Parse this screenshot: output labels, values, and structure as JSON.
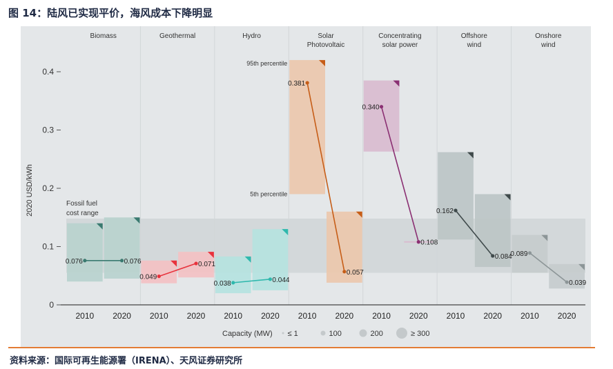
{
  "figure_title": "图 14：陆风已实现平价，海风成本下降明显",
  "source_text": "资料来源：国际可再生能源署（IRENA）、天风证券研究所",
  "chart_data": {
    "type": "range-slope",
    "ylabel": "2020 USD/kWh",
    "ylim": [
      0,
      0.42
    ],
    "yticks": [
      0,
      0.1,
      0.2,
      0.3,
      0.4
    ],
    "ytick_labels": [
      "0",
      "0.1",
      "0.2",
      "0.3",
      "0.4"
    ],
    "year_labels": [
      "2010",
      "2020"
    ],
    "fossil_range": [
      0.055,
      0.148
    ],
    "fossil_label_line1": "Fossil fuel",
    "fossil_label_line2": "cost range",
    "p95_label": "95th percentile",
    "p5_label": "5th percentile",
    "series": [
      {
        "name": "Biomass",
        "title1": "Biomass",
        "title2": "",
        "color": "#3a7a70",
        "v2010": 0.076,
        "v2020": 0.076,
        "l2010": "0.076",
        "l2020": "0.076",
        "box2010": [
          0.04,
          0.14
        ],
        "box2020": [
          0.045,
          0.15
        ],
        "fill": "#b9d2ce"
      },
      {
        "name": "Geothermal",
        "title1": "Geothermal",
        "title2": "",
        "color": "#e8323c",
        "v2010": 0.049,
        "v2020": 0.071,
        "l2010": "0.049",
        "l2020": "0.071",
        "box2010": [
          0.037,
          0.076
        ],
        "box2020": [
          0.047,
          0.091
        ],
        "fill": "#f3c1c3"
      },
      {
        "name": "Hydro",
        "title1": "Hydro",
        "title2": "",
        "color": "#2fb8ad",
        "v2010": 0.038,
        "v2020": 0.044,
        "l2010": "0.038",
        "l2020": "0.044",
        "box2010": [
          0.02,
          0.083
        ],
        "box2020": [
          0.025,
          0.13
        ],
        "fill": "#b5e3df"
      },
      {
        "name": "Solar Photovoltaic",
        "title1": "Solar",
        "title2": "Photovoltaic",
        "color": "#c65d17",
        "v2010": 0.381,
        "v2020": 0.057,
        "l2010": "0.381",
        "l2020": "0.057",
        "box2010": [
          0.19,
          0.42
        ],
        "box2020": [
          0.038,
          0.16
        ],
        "fill": "#ecc8ac"
      },
      {
        "name": "Concentrating solar power",
        "title1": "Concentrating",
        "title2": "solar power",
        "color": "#8a2f72",
        "v2010": 0.34,
        "v2020": 0.108,
        "l2010": "0.340",
        "l2020": "0.108",
        "box2010": [
          0.263,
          0.385
        ],
        "box2020": [
          0.108,
          0.108
        ],
        "fill": "#d9bccf"
      },
      {
        "name": "Offshore wind",
        "title1": "Offshore",
        "title2": "wind",
        "color": "#3f4a4b",
        "v2010": 0.162,
        "v2020": 0.084,
        "l2010": "0.162",
        "l2020": "0.084",
        "box2010": [
          0.112,
          0.262
        ],
        "box2020": [
          0.065,
          0.19
        ],
        "fill": "#bcc5c6"
      },
      {
        "name": "Onshore wind",
        "title1": "Onshore",
        "title2": "wind",
        "color": "#8c9597",
        "v2010": 0.089,
        "v2020": 0.039,
        "l2010": "0.089",
        "l2020": "0.039",
        "box2010": [
          0.055,
          0.12
        ],
        "box2020": [
          0.028,
          0.07
        ],
        "fill": "#c5cccd"
      }
    ],
    "legend": {
      "title": "Capacity (MW)",
      "items": [
        "≤ 1",
        "100",
        "200",
        "≥ 300"
      ]
    }
  }
}
